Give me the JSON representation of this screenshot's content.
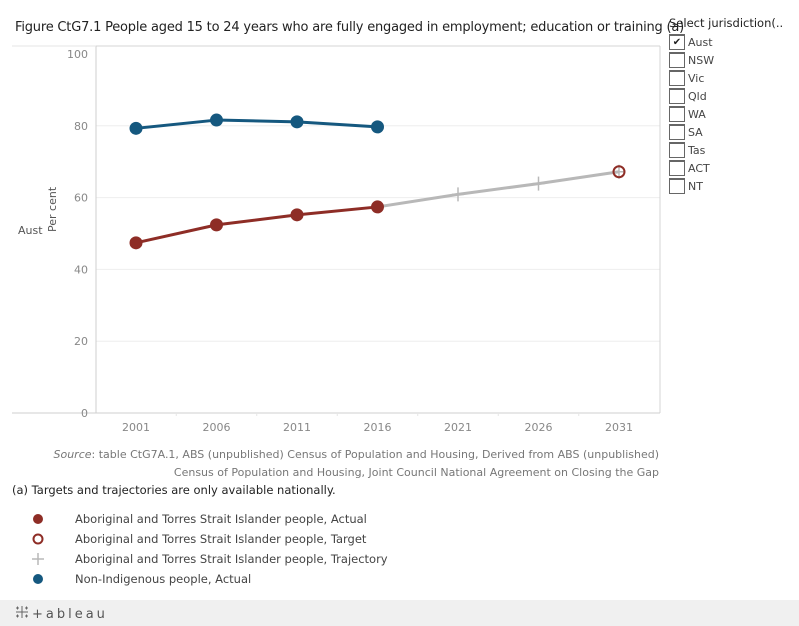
{
  "title": "Figure CtG7.1 People aged 15 to 24 years who are fully engaged in employment; education or training (a)",
  "row_label": "Aust",
  "filter": {
    "title": "Select jurisdiction(..",
    "items": [
      {
        "label": "Aust",
        "checked": true
      },
      {
        "label": "NSW",
        "checked": false
      },
      {
        "label": "Vic",
        "checked": false
      },
      {
        "label": "Qld",
        "checked": false
      },
      {
        "label": "WA",
        "checked": false
      },
      {
        "label": "SA",
        "checked": false
      },
      {
        "label": "Tas",
        "checked": false
      },
      {
        "label": "ACT",
        "checked": false
      },
      {
        "label": "NT",
        "checked": false
      }
    ],
    "check_glyph": "✔"
  },
  "source": {
    "prefix": "Source",
    "line1": ": table CtG7A.1, ABS (unpublished) Census of Population and Housing, Derived from ABS (unpublished)",
    "line2": "Census of Population and Housing, Joint Council National Agreement on Closing the Gap"
  },
  "note": "(a) Targets and trajectories are only available nationally.",
  "legend": [
    {
      "label": "Aboriginal and Torres Strait Islander people, Actual",
      "symbol": "filled-circle",
      "color": "#8e2d26"
    },
    {
      "label": "Aboriginal and Torres Strait Islander people, Target",
      "symbol": "open-circle",
      "color": "#8e2d26"
    },
    {
      "label": "Aboriginal and Torres Strait Islander people, Trajectory",
      "symbol": "plus",
      "color": "#b8b8b8"
    },
    {
      "label": "Non-Indigenous people, Actual",
      "symbol": "filled-circle",
      "color": "#15587f"
    }
  ],
  "footer": {
    "brand": "+ableau"
  },
  "chart_data": {
    "type": "line",
    "title": "Figure CtG7.1 People aged 15 to 24 years who are fully engaged in employment; education or training (a)",
    "xlabel": "",
    "ylabel": "Per cent",
    "row_label": "Aust",
    "categories": [
      "2001",
      "2006",
      "2011",
      "2016",
      "2021",
      "2026",
      "2031"
    ],
    "ylim": [
      0,
      100
    ],
    "yticks": [
      0,
      20,
      40,
      60,
      80,
      100
    ],
    "grid": true,
    "legend_position": "bottom-left",
    "series": [
      {
        "name": "Non-Indigenous people, Actual",
        "color": "#15587f",
        "marker": "filled-circle",
        "values": [
          79.3,
          81.6,
          81.1,
          79.7,
          null,
          null,
          null
        ]
      },
      {
        "name": "Aboriginal and Torres Strait Islander people, Actual",
        "color": "#8e2d26",
        "marker": "filled-circle",
        "values": [
          47.4,
          52.4,
          55.2,
          57.4,
          null,
          null,
          null
        ]
      },
      {
        "name": "Aboriginal and Torres Strait Islander people, Trajectory",
        "color": "#b8b8b8",
        "marker": "plus",
        "values": [
          null,
          null,
          null,
          57.4,
          60.9,
          63.9,
          67.2
        ]
      },
      {
        "name": "Aboriginal and Torres Strait Islander people, Target",
        "color": "#8e2d26",
        "marker": "open-circle",
        "values": [
          null,
          null,
          null,
          null,
          null,
          null,
          67.2
        ]
      }
    ]
  }
}
